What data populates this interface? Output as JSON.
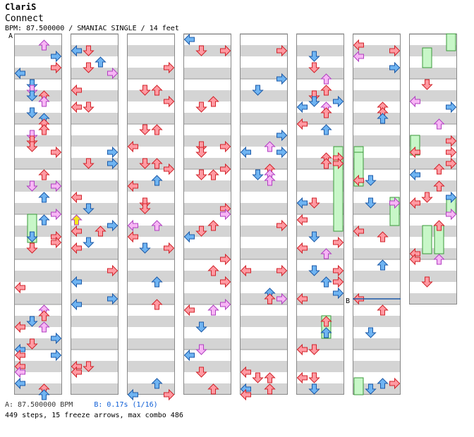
{
  "song": {
    "artist": "ClariS",
    "title": "Connect",
    "meta": "BPM: 87.500000 / SMANIAC SINGLE / 14 feet"
  },
  "markers": {
    "a": "A",
    "b": "B"
  },
  "footer": {
    "bpm_line": "A: 87.500000 BPM",
    "stop_line": "B: 0.17s (1/16)",
    "stats": "449 steps, 15 freeze arrows, max combo 486"
  },
  "colors": {
    "red_arrow": "#ff9aa2",
    "blue_arrow": "#6fb4f2",
    "pink_arrow": "#f7b6f5",
    "yellow_arrow": "#f2e81a",
    "freeze": "#c8f7c8",
    "band_gray": "#d4d4d4",
    "text_blue": "#0a5cd6"
  },
  "chart_data": {
    "type": "step-chart",
    "columns": 8,
    "measures_per_column": 8,
    "beat_bands_per_measure": 2,
    "lanes": [
      "left",
      "down",
      "up",
      "right"
    ],
    "arrow_note_types": [
      "quarter",
      "eighth",
      "sixteenth",
      "triplet"
    ],
    "steps": 449,
    "freeze_arrows": 15,
    "max_combo": 486,
    "bpm": 87.5
  }
}
